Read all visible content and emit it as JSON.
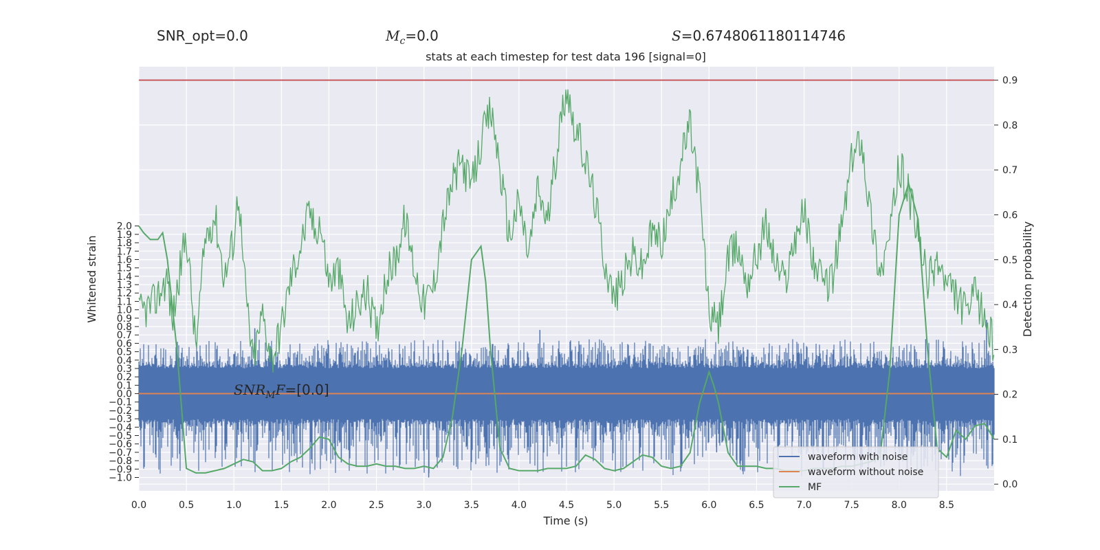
{
  "chart_data": {
    "type": "line",
    "header": {
      "snr_opt": "SNR_opt=0.0",
      "mc": "=0.0",
      "s": "=0.6748061180114746"
    },
    "title": "stats at each timestep for test data 196 [signal=0]",
    "annotation": "=[0.0]",
    "xlabel": "Time (s)",
    "ylabel_left": "Whitened strain",
    "ylabel_right": "Detection probability",
    "xlim": [
      0.0,
      9.0
    ],
    "ylim_left": [
      -1.16,
      3.9
    ],
    "ylim_right": [
      -0.015,
      0.93
    ],
    "x_ticks": [
      0.0,
      0.5,
      1.0,
      1.5,
      2.0,
      2.5,
      3.0,
      3.5,
      4.0,
      4.5,
      5.0,
      5.5,
      6.0,
      6.5,
      7.0,
      7.5,
      8.0,
      8.5
    ],
    "left_ticks": [
      -1.0,
      -0.9,
      -0.8,
      -0.7,
      -0.6,
      -0.5,
      -0.4,
      -0.3,
      -0.2,
      -0.1,
      0.0,
      0.1,
      0.2,
      0.3,
      0.4,
      0.5,
      0.6,
      0.7,
      0.8,
      0.9,
      1.0,
      1.1,
      1.2,
      1.3,
      1.4,
      1.5,
      1.6,
      1.7,
      1.8,
      1.9,
      2.0
    ],
    "right_ticks": [
      0.0,
      0.1,
      0.2,
      0.3,
      0.4,
      0.5,
      0.6,
      0.7,
      0.8,
      0.9
    ],
    "threshold": 0.9,
    "legend": [
      "waveform with noise",
      "waveform without noise",
      "MF"
    ],
    "legend_position": "lower-right",
    "grid": true,
    "colors": {
      "plot_bg": "#eaeaf2",
      "grid": "#ffffff",
      "noisy": "#4c72b0",
      "clean": "#dd8452",
      "mf": "#55a868",
      "threshold": "#c44e52",
      "text": "#262626"
    },
    "series": [
      {
        "name": "waveform with noise",
        "axis": "left",
        "envelope_max": 0.65,
        "envelope_min": -0.65,
        "outliers": [
          [
            1.22,
            0.78
          ],
          [
            2.13,
            -0.82
          ],
          [
            3.05,
            -1.0
          ],
          [
            4.22,
            0.76
          ],
          [
            6.08,
            -0.7
          ],
          [
            8.28,
            0.65
          ],
          [
            8.92,
            0.88
          ]
        ]
      },
      {
        "name": "waveform without noise",
        "axis": "left",
        "x": [
          0.0,
          9.0
        ],
        "y": [
          0.0,
          0.0
        ]
      },
      {
        "name": "MF",
        "axis": "right",
        "x": [
          0.0,
          0.05,
          0.12,
          0.2,
          0.25,
          0.3,
          0.4,
          0.5,
          0.6,
          0.7,
          0.8,
          0.9,
          1.0,
          1.1,
          1.2,
          1.3,
          1.4,
          1.5,
          1.6,
          1.7,
          1.8,
          1.9,
          2.0,
          2.1,
          2.2,
          2.3,
          2.4,
          2.5,
          2.6,
          2.7,
          2.8,
          2.9,
          3.0,
          3.1,
          3.2,
          3.3,
          3.4,
          3.5,
          3.6,
          3.65,
          3.7,
          3.8,
          3.9,
          4.0,
          4.1,
          4.2,
          4.3,
          4.4,
          4.5,
          4.6,
          4.7,
          4.8,
          4.9,
          5.0,
          5.1,
          5.2,
          5.3,
          5.4,
          5.5,
          5.6,
          5.7,
          5.8,
          5.9,
          6.0,
          6.05,
          6.1,
          6.2,
          6.3,
          6.4,
          6.5,
          6.6,
          6.7,
          6.8,
          6.9,
          7.0,
          7.1,
          7.2,
          7.3,
          7.4,
          7.5,
          7.6,
          7.7,
          7.8,
          7.9,
          8.0,
          8.1,
          8.2,
          8.3,
          8.4,
          8.5,
          8.6,
          8.7,
          8.8,
          8.9,
          9.0
        ],
        "y": [
          0.575,
          0.56,
          0.545,
          0.545,
          0.56,
          0.5,
          0.3,
          0.035,
          0.025,
          0.025,
          0.03,
          0.035,
          0.045,
          0.055,
          0.05,
          0.03,
          0.03,
          0.035,
          0.05,
          0.06,
          0.08,
          0.105,
          0.1,
          0.06,
          0.045,
          0.04,
          0.04,
          0.045,
          0.04,
          0.04,
          0.035,
          0.035,
          0.04,
          0.035,
          0.06,
          0.15,
          0.3,
          0.5,
          0.53,
          0.45,
          0.3,
          0.08,
          0.035,
          0.03,
          0.03,
          0.03,
          0.035,
          0.035,
          0.035,
          0.04,
          0.065,
          0.055,
          0.035,
          0.03,
          0.035,
          0.05,
          0.065,
          0.06,
          0.04,
          0.035,
          0.04,
          0.07,
          0.18,
          0.25,
          0.22,
          0.18,
          0.07,
          0.04,
          0.04,
          0.04,
          0.035,
          0.035,
          0.03,
          0.03,
          0.03,
          0.035,
          0.035,
          0.035,
          0.04,
          0.04,
          0.045,
          0.05,
          0.06,
          0.25,
          0.6,
          0.67,
          0.59,
          0.3,
          0.08,
          0.06,
          0.12,
          0.1,
          0.13,
          0.135,
          0.1
        ]
      },
      {
        "name": "Detection probability",
        "axis": "right",
        "x": [
          0.0,
          0.15,
          0.3,
          0.35,
          0.45,
          0.5,
          0.6,
          0.7,
          0.8,
          0.9,
          1.0,
          1.05,
          1.1,
          1.2,
          1.3,
          1.4,
          1.5,
          1.6,
          1.7,
          1.8,
          1.85,
          1.9,
          2.0,
          2.1,
          2.2,
          2.3,
          2.4,
          2.5,
          2.6,
          2.7,
          2.8,
          2.9,
          3.0,
          3.1,
          3.2,
          3.3,
          3.4,
          3.5,
          3.6,
          3.7,
          3.75,
          3.8,
          3.9,
          4.0,
          4.1,
          4.2,
          4.3,
          4.4,
          4.5,
          4.55,
          4.6,
          4.7,
          4.8,
          4.9,
          5.0,
          5.1,
          5.2,
          5.3,
          5.4,
          5.5,
          5.6,
          5.7,
          5.8,
          5.9,
          6.0,
          6.1,
          6.2,
          6.3,
          6.4,
          6.5,
          6.6,
          6.7,
          6.8,
          6.9,
          7.0,
          7.1,
          7.2,
          7.3,
          7.4,
          7.5,
          7.6,
          7.7,
          7.8,
          7.9,
          8.0,
          8.1,
          8.2,
          8.3,
          8.4,
          8.5,
          8.6,
          8.7,
          8.8,
          8.9,
          9.0
        ],
        "y": [
          0.38,
          0.4,
          0.46,
          0.36,
          0.5,
          0.56,
          0.3,
          0.55,
          0.6,
          0.46,
          0.55,
          0.66,
          0.48,
          0.27,
          0.38,
          0.28,
          0.35,
          0.46,
          0.53,
          0.61,
          0.56,
          0.59,
          0.45,
          0.48,
          0.35,
          0.4,
          0.43,
          0.34,
          0.46,
          0.5,
          0.59,
          0.48,
          0.4,
          0.44,
          0.58,
          0.67,
          0.72,
          0.66,
          0.76,
          0.83,
          0.78,
          0.7,
          0.55,
          0.63,
          0.51,
          0.66,
          0.58,
          0.75,
          0.89,
          0.83,
          0.79,
          0.72,
          0.63,
          0.5,
          0.41,
          0.46,
          0.51,
          0.48,
          0.56,
          0.54,
          0.62,
          0.72,
          0.8,
          0.65,
          0.38,
          0.35,
          0.5,
          0.53,
          0.45,
          0.51,
          0.58,
          0.49,
          0.45,
          0.55,
          0.61,
          0.5,
          0.44,
          0.46,
          0.58,
          0.72,
          0.78,
          0.6,
          0.47,
          0.55,
          0.71,
          0.65,
          0.55,
          0.45,
          0.5,
          0.44,
          0.42,
          0.38,
          0.42,
          0.37,
          0.31
        ]
      }
    ]
  }
}
